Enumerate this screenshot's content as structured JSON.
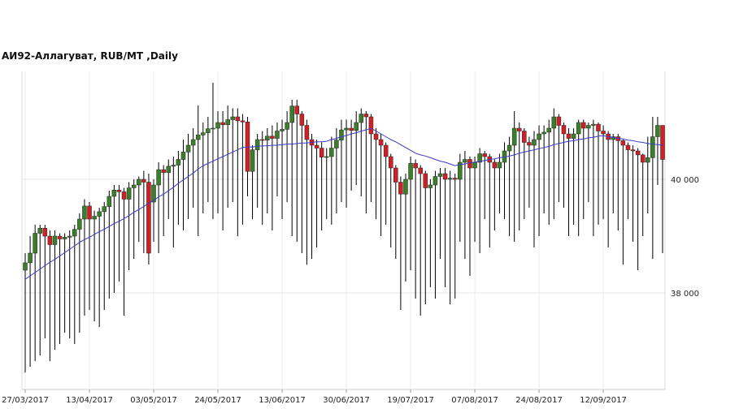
{
  "chart_data": {
    "type": "candlestick",
    "title": "АИ92-Аллагуват,  RUB/MT ,Daily",
    "categories": [
      "27/03/2017",
      null,
      null,
      null,
      null,
      null,
      null,
      null,
      null,
      null,
      null,
      null,
      null,
      "13/04/2017",
      null,
      null,
      null,
      null,
      null,
      null,
      null,
      null,
      null,
      null,
      null,
      null,
      "03/05/2017",
      null,
      null,
      null,
      null,
      null,
      null,
      null,
      null,
      null,
      null,
      null,
      null,
      "24/05/2017",
      null,
      null,
      null,
      null,
      null,
      null,
      null,
      null,
      null,
      null,
      null,
      null,
      "13/06/2017",
      null,
      null,
      null,
      null,
      null,
      null,
      null,
      null,
      null,
      null,
      null,
      null,
      "30/06/2017",
      null,
      null,
      null,
      null,
      null,
      null,
      null,
      null,
      null,
      null,
      null,
      null,
      "19/07/2017",
      null,
      null,
      null,
      null,
      null,
      null,
      null,
      null,
      null,
      null,
      null,
      null,
      "07/08/2017",
      null,
      null,
      null,
      null,
      null,
      null,
      null,
      null,
      null,
      null,
      null,
      null,
      "24/08/2017",
      null,
      null,
      null,
      null,
      null,
      null,
      null,
      null,
      null,
      null,
      null,
      null,
      "12/09/2017",
      null,
      null,
      null,
      null,
      null,
      null,
      null,
      null,
      null,
      null,
      null,
      null
    ],
    "open": [
      38400,
      38530,
      38700,
      39050,
      39140,
      39000,
      38850,
      39000,
      38950,
      38980,
      39000,
      39120,
      39300,
      39530,
      39300,
      39350,
      39430,
      39520,
      39700,
      39810,
      39780,
      39650,
      39850,
      39900,
      40000,
      39950,
      39600,
      39900,
      40170,
      40120,
      40230,
      40250,
      40350,
      40480,
      40600,
      40700,
      40780,
      40820,
      40890,
      40900,
      41000,
      40960,
      41050,
      41100,
      41030,
      41010,
      40140,
      40520,
      40700,
      40690,
      40760,
      40720,
      40850,
      40880,
      41000,
      41290,
      41150,
      40950,
      40700,
      40600,
      40550,
      40390,
      40400,
      40550,
      40690,
      40870,
      40900,
      40860,
      41000,
      41150,
      41100,
      40800,
      40700,
      40600,
      40400,
      40200,
      39950,
      39740,
      40000,
      40280,
      40200,
      40100,
      39850,
      39900,
      40050,
      40100,
      40000,
      40020,
      40000,
      40300,
      40350,
      40200,
      40300,
      40450,
      40400,
      40300,
      40200,
      40300,
      40500,
      40600,
      40900,
      40850,
      40650,
      40600,
      40700,
      40800,
      40830,
      40900,
      41100,
      40950,
      40800,
      40720,
      40800,
      41000,
      40900,
      40950,
      40970,
      40850,
      40800,
      40700,
      40750,
      40680,
      40600,
      40520,
      40500,
      40430,
      40300,
      40380,
      40750,
      40950
    ],
    "high": [
      38700,
      39000,
      39200,
      39200,
      39200,
      39100,
      39100,
      39050,
      39050,
      39100,
      39200,
      39400,
      39650,
      39600,
      39450,
      39500,
      39600,
      39800,
      39900,
      39900,
      39850,
      39950,
      40000,
      40050,
      40150,
      40100,
      40000,
      40300,
      40250,
      40350,
      40400,
      40500,
      40700,
      40800,
      40900,
      41300,
      41000,
      41100,
      41700,
      41200,
      41200,
      41300,
      41250,
      41250,
      41150,
      41100,
      40600,
      40800,
      40850,
      40900,
      40950,
      41000,
      41050,
      41200,
      41400,
      41400,
      41200,
      41050,
      40800,
      40700,
      40650,
      40550,
      40750,
      40900,
      41050,
      41050,
      41050,
      41200,
      41250,
      41200,
      41150,
      40900,
      40800,
      40650,
      40450,
      40250,
      40050,
      40100,
      40400,
      40350,
      40250,
      40150,
      40000,
      40150,
      40200,
      40200,
      40150,
      40100,
      40450,
      40500,
      40400,
      40400,
      40550,
      40500,
      40450,
      40350,
      40450,
      40650,
      40750,
      41200,
      41000,
      40900,
      40750,
      40850,
      40950,
      40950,
      41050,
      41250,
      41150,
      41000,
      40900,
      40900,
      41050,
      41050,
      41000,
      41050,
      41000,
      40950,
      40850,
      40800,
      40800,
      40700,
      40650,
      40600,
      40550,
      40450,
      40750,
      41100,
      41100,
      40950
    ],
    "low": [
      36600,
      36700,
      36800,
      36900,
      37200,
      36800,
      37000,
      37100,
      37300,
      37200,
      37100,
      37300,
      37600,
      37700,
      37500,
      37400,
      37700,
      37900,
      38000,
      38200,
      37600,
      38400,
      38600,
      38900,
      38700,
      38500,
      38900,
      38700,
      39000,
      39300,
      38800,
      39200,
      39100,
      39300,
      39500,
      39000,
      39400,
      39600,
      39300,
      39400,
      39100,
      39500,
      39600,
      39000,
      39200,
      39700,
      39300,
      39500,
      39200,
      39400,
      39100,
      39700,
      39300,
      39600,
      39000,
      38900,
      38700,
      38500,
      38600,
      38800,
      39100,
      39300,
      39200,
      39400,
      39600,
      39500,
      39800,
      39900,
      39700,
      39400,
      39600,
      39300,
      39000,
      39200,
      38800,
      38600,
      37700,
      38200,
      38400,
      37900,
      37600,
      37800,
      38100,
      37900,
      38600,
      38100,
      37800,
      37900,
      38900,
      38600,
      38300,
      38900,
      38700,
      39300,
      38800,
      39100,
      39400,
      39300,
      39000,
      38900,
      39100,
      39300,
      39500,
      38800,
      39000,
      39400,
      39200,
      39300,
      39600,
      39500,
      39000,
      39200,
      39000,
      39300,
      39600,
      39000,
      39200,
      39300,
      38800,
      39400,
      39100,
      38500,
      39300,
      38900,
      38400,
      39000,
      39400,
      38600,
      39900,
      38700
    ],
    "close": [
      38530,
      38700,
      39050,
      39140,
      39000,
      38850,
      39000,
      38950,
      38980,
      39000,
      39120,
      39300,
      39530,
      39300,
      39350,
      39430,
      39520,
      39700,
      39810,
      39780,
      39650,
      39850,
      39900,
      40000,
      39950,
      38700,
      39900,
      40170,
      40120,
      40230,
      40250,
      40350,
      40480,
      40600,
      40700,
      40780,
      40820,
      40890,
      40900,
      41000,
      40960,
      41050,
      41100,
      41030,
      41010,
      40140,
      40520,
      40700,
      40690,
      40760,
      40720,
      40850,
      40880,
      41000,
      41290,
      41150,
      40950,
      40700,
      40600,
      40550,
      40390,
      40400,
      40550,
      40690,
      40870,
      40900,
      40860,
      41000,
      41150,
      41100,
      40800,
      40700,
      40600,
      40400,
      40200,
      39950,
      39740,
      40000,
      40280,
      40200,
      40100,
      39850,
      39900,
      40050,
      40100,
      40000,
      40020,
      40000,
      40300,
      40350,
      40200,
      40300,
      40450,
      40400,
      40300,
      40200,
      40300,
      40500,
      40600,
      40900,
      40850,
      40650,
      40600,
      40700,
      40800,
      40830,
      40900,
      41100,
      40950,
      40800,
      40720,
      40800,
      41000,
      40900,
      40950,
      40970,
      40850,
      40800,
      40700,
      40750,
      40680,
      40600,
      40520,
      40500,
      40430,
      40300,
      40380,
      40750,
      40950,
      40350
    ],
    "moving_average": [
      38240,
      38300,
      38360,
      38420,
      38480,
      38540,
      38590,
      38650,
      38710,
      38770,
      38830,
      38890,
      38940,
      38980,
      39030,
      39080,
      39120,
      39170,
      39220,
      39260,
      39310,
      39360,
      39420,
      39470,
      39520,
      39580,
      39630,
      39690,
      39740,
      39800,
      39860,
      39930,
      39990,
      40050,
      40110,
      40180,
      40240,
      40280,
      40320,
      40360,
      40400,
      40440,
      40480,
      40520,
      40560,
      40570,
      40570,
      40580,
      40590,
      40590,
      40600,
      40600,
      40610,
      40620,
      40620,
      40630,
      40640,
      40640,
      40650,
      40660,
      40660,
      40670,
      40700,
      40720,
      40750,
      40770,
      40800,
      40820,
      40850,
      40870,
      40900,
      40850,
      40800,
      40750,
      40700,
      40660,
      40610,
      40560,
      40510,
      40460,
      40430,
      40410,
      40380,
      40350,
      40320,
      40300,
      40270,
      40240,
      40260,
      40270,
      40290,
      40300,
      40320,
      40330,
      40350,
      40360,
      40380,
      40390,
      40410,
      40430,
      40460,
      40480,
      40500,
      40520,
      40540,
      40560,
      40580,
      40610,
      40630,
      40650,
      40670,
      40680,
      40700,
      40710,
      40730,
      40740,
      40760,
      40770,
      40750,
      40740,
      40720,
      40710,
      40690,
      40680,
      40660,
      40650,
      40630,
      40620,
      40610,
      40600
    ],
    "up_color": "#3b7f2a",
    "down_color": "#d21f26",
    "ma_color": "#3a3acc",
    "ylim": [
      36300,
      41900
    ],
    "yticks": [
      {
        "value": 38000,
        "label": "38 000"
      },
      {
        "value": 40000,
        "label": "40 000"
      }
    ],
    "grid": true
  }
}
